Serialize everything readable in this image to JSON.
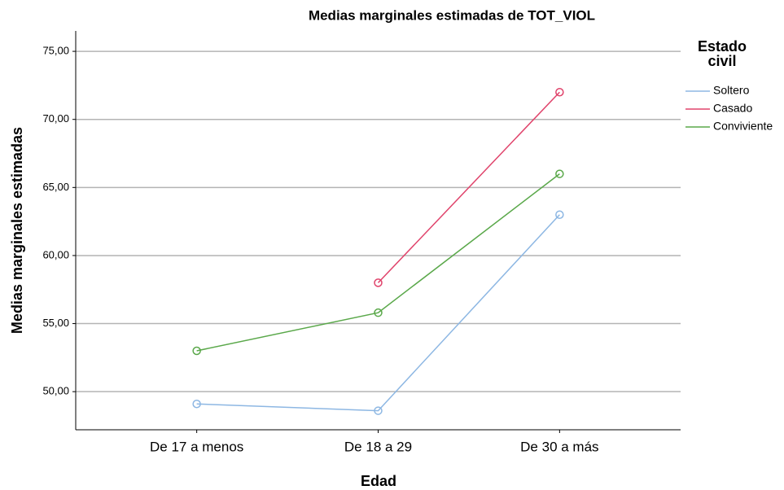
{
  "chart_data": {
    "type": "line",
    "title": "Medias marginales estimadas de TOT_VIOL",
    "x_label": "Edad",
    "y_label": "Medias marginales estimadas",
    "legend_title": "Estado civil",
    "legend_position": "right",
    "categories": [
      "De 17 a menos",
      "De 18 a 29",
      "De 30 a más"
    ],
    "series": [
      {
        "name": "Soltero",
        "color": "#8db7e3",
        "values": [
          49.1,
          48.6,
          63.0
        ]
      },
      {
        "name": "Casado",
        "color": "#e0436b",
        "values": [
          null,
          58.0,
          72.0
        ]
      },
      {
        "name": "Conviviente",
        "color": "#5aa84a",
        "values": [
          53.0,
          55.8,
          66.0
        ]
      }
    ],
    "ylim": [
      47.2,
      76.5
    ],
    "yticks": [
      {
        "value": 50,
        "label": "50,00"
      },
      {
        "value": 55,
        "label": "55,00"
      },
      {
        "value": 60,
        "label": "60,00"
      },
      {
        "value": 65,
        "label": "65,00"
      },
      {
        "value": 70,
        "label": "70,00"
      },
      {
        "value": 75,
        "label": "75,00"
      }
    ],
    "grid": true
  }
}
